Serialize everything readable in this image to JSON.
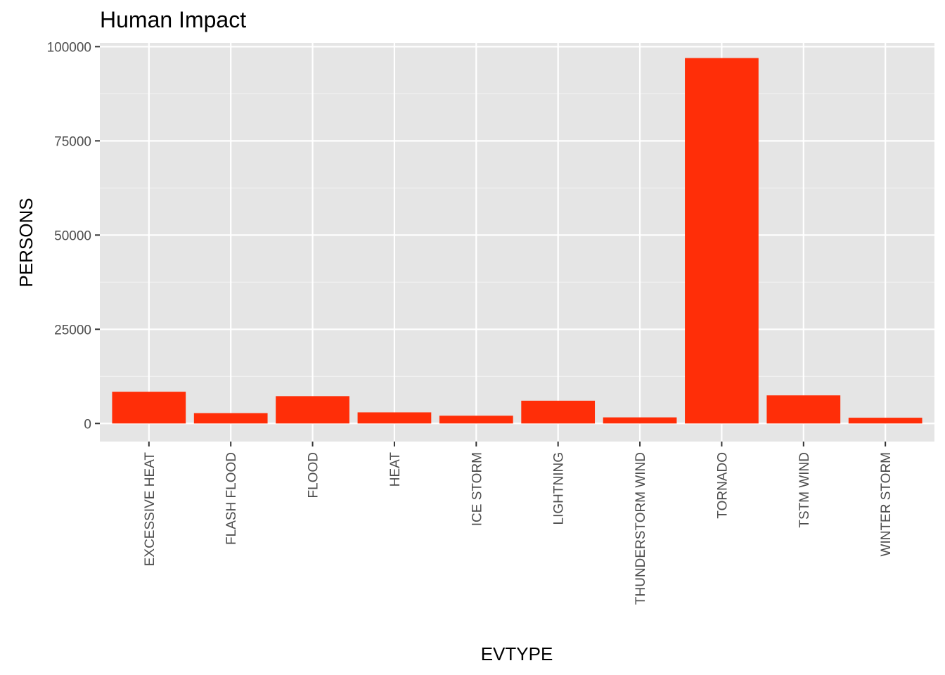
{
  "chart_data": {
    "type": "bar",
    "title": "Human Impact",
    "xlabel": "EVTYPE",
    "ylabel": "PERSONS",
    "categories": [
      "EXCESSIVE HEAT",
      "FLASH FLOOD",
      "FLOOD",
      "HEAT",
      "ICE STORM",
      "LIGHTNING",
      "THUNDERSTORM WIND",
      "TORNADO",
      "TSTM WIND",
      "WINTER STORM"
    ],
    "values": [
      8428,
      2755,
      7259,
      2954,
      2064,
      6046,
      1621,
      96979,
      7461,
      1527
    ],
    "y_ticks": [
      0,
      25000,
      50000,
      75000,
      100000
    ],
    "ylim": [
      -4800,
      101000
    ],
    "grid": true,
    "legend": "none",
    "colors": {
      "bar": "#FF2E08",
      "panel": "#E5E5E5",
      "grid_major": "#FFFFFF",
      "grid_minor": "#F2F2F2"
    }
  }
}
